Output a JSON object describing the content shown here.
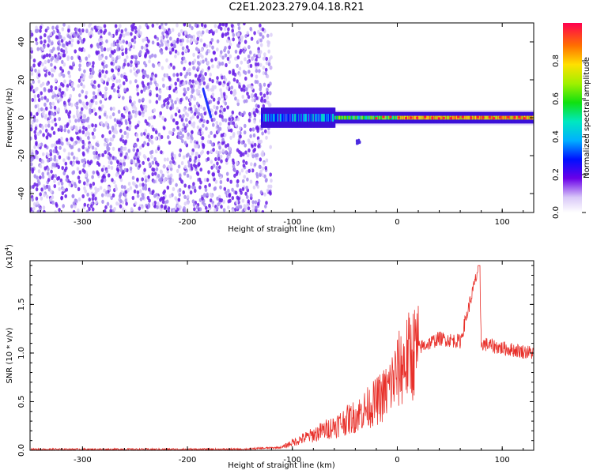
{
  "title": "C2E1.2023.279.04.18.R21",
  "chart_data": [
    {
      "type": "heatmap",
      "xlabel": "Height of straight line (km)",
      "ylabel": "Frequency (Hz)",
      "xlim": [
        -350,
        130
      ],
      "ylim": [
        -50,
        50
      ],
      "x_ticks": [
        "-300",
        "-200",
        "-100",
        "0",
        "100"
      ],
      "y_ticks": [
        "40",
        "20",
        "0",
        "-20",
        "-40"
      ],
      "colorbar": {
        "label": "Normalized spectral amplitude",
        "range": [
          0,
          1
        ],
        "ticks": [
          "0.0",
          "0.2",
          "0.4",
          "0.6",
          "0.8"
        ]
      },
      "features": [
        {
          "x_range": [
            -350,
            -120
          ],
          "freq_range": [
            -50,
            50
          ],
          "amplitude": 0.05
        },
        {
          "x_range": [
            -130,
            -60
          ],
          "freq_center": 0,
          "freq_halfwidth": 5,
          "amplitude": 0.3
        },
        {
          "x_range": [
            -60,
            130
          ],
          "freq_center": 0,
          "freq_halfwidth": 3,
          "amplitude": 0.8
        }
      ]
    },
    {
      "type": "line",
      "xlabel": "Height of straight line (km)",
      "ylabel": "SNR (10 * v/v)",
      "y_multiplier": "(x10",
      "y_multiplier_exp": "4",
      "xlim": [
        -350,
        130
      ],
      "ylim": [
        0,
        1.95
      ],
      "x_ticks": [
        "-300",
        "-200",
        "-100",
        "0",
        "100"
      ],
      "y_ticks": [
        "0.0",
        "0.5",
        "1.0",
        "1.5"
      ],
      "color": "#e8302a",
      "series": [
        {
          "x": [
            -350,
            -300,
            -250,
            -200,
            -150,
            -110,
            -100,
            -80,
            -60,
            -40,
            -20,
            -10,
            0,
            10,
            20,
            40,
            60,
            78,
            80,
            100,
            130
          ],
          "values": [
            0.01,
            0.01,
            0.01,
            0.01,
            0.01,
            0.03,
            0.08,
            0.16,
            0.25,
            0.35,
            0.5,
            0.6,
            0.8,
            0.95,
            1.05,
            1.15,
            1.12,
            1.9,
            1.1,
            1.05,
            1.0
          ]
        }
      ]
    }
  ]
}
